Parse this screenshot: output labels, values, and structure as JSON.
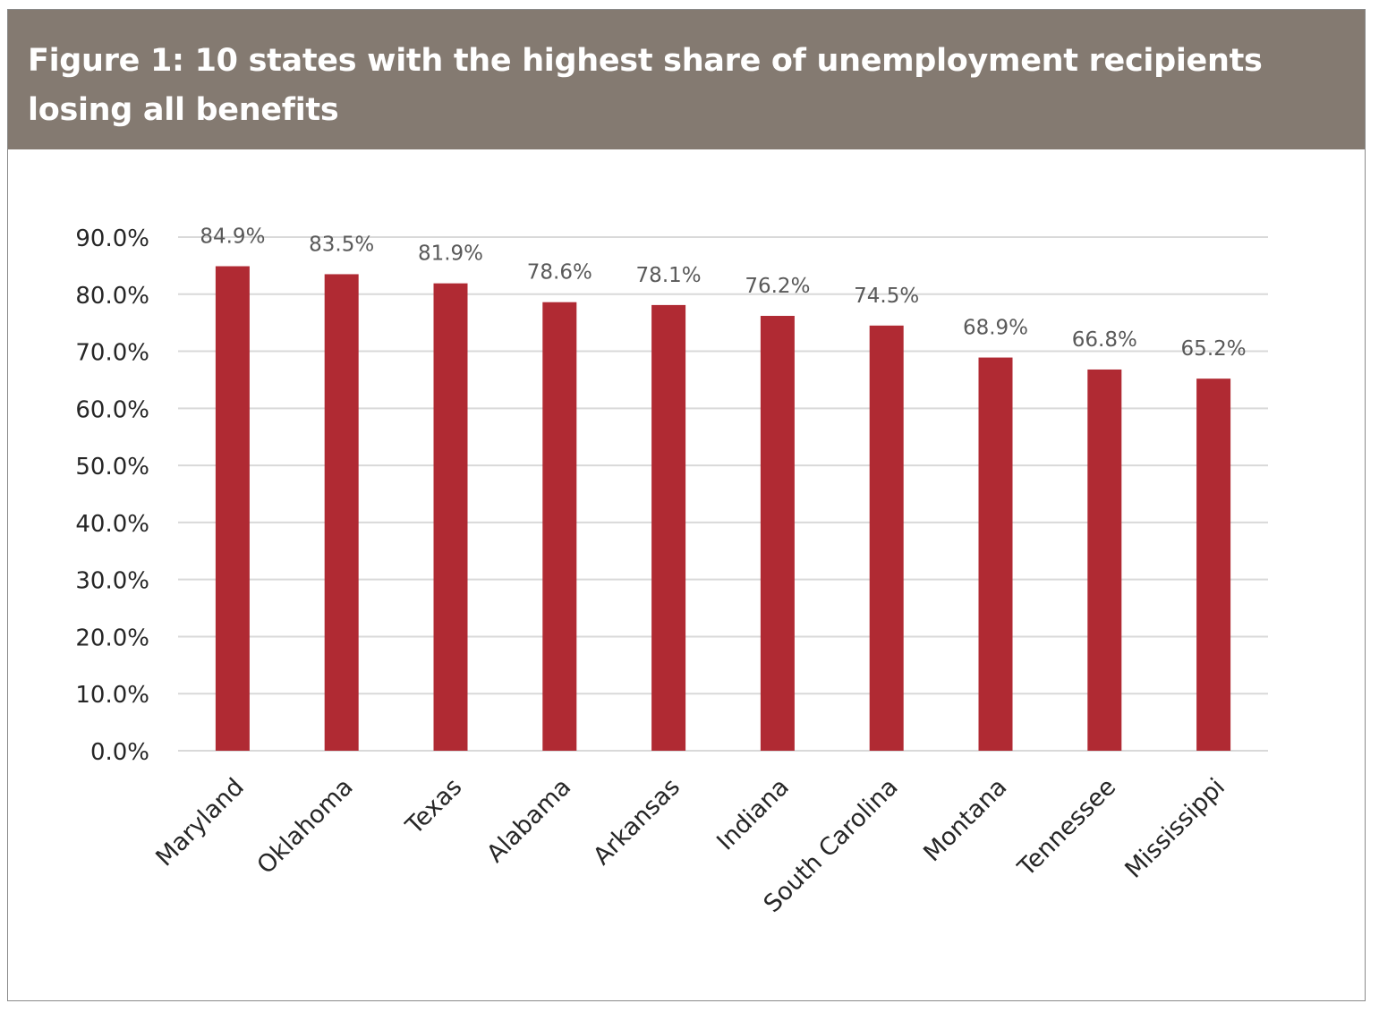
{
  "header": {
    "title": "Figure 1: 10 states with the highest share of unemployment recipients losing all benefits"
  },
  "colors": {
    "header_bg": "#847a71",
    "bar": "#b02a33",
    "grid": "#d9d9d9",
    "label": "#595959",
    "tick": "#262626"
  },
  "chart_data": {
    "type": "bar",
    "title": "Figure 1: 10 states with the highest share of unemployment recipients losing all benefits",
    "xlabel": "",
    "ylabel": "",
    "ylim": [
      0,
      90
    ],
    "yticks": [
      "0.0%",
      "10.0%",
      "20.0%",
      "30.0%",
      "40.0%",
      "50.0%",
      "60.0%",
      "70.0%",
      "80.0%",
      "90.0%"
    ],
    "grid": true,
    "legend": "none",
    "categories": [
      "Maryland",
      "Oklahoma",
      "Texas",
      "Alabama",
      "Arkansas",
      "Indiana",
      "South Carolina",
      "Montana",
      "Tennessee",
      "Mississippi"
    ],
    "values": [
      84.9,
      83.5,
      81.9,
      78.6,
      78.1,
      76.2,
      74.5,
      68.9,
      66.8,
      65.2
    ],
    "data_labels": [
      "84.9%",
      "83.5%",
      "81.9%",
      "78.6%",
      "78.1%",
      "76.2%",
      "74.5%",
      "68.9%",
      "66.8%",
      "65.2%"
    ]
  }
}
